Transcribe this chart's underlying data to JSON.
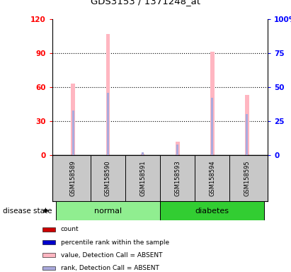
{
  "title": "GDS3153 / 1371248_at",
  "samples": [
    "GSM158589",
    "GSM158590",
    "GSM158591",
    "GSM158593",
    "GSM158594",
    "GSM158595"
  ],
  "groups": [
    "normal",
    "normal",
    "normal",
    "diabetes",
    "diabetes",
    "diabetes"
  ],
  "ylim_left": [
    0,
    120
  ],
  "ylim_right": [
    0,
    100
  ],
  "yticks_left": [
    0,
    30,
    60,
    90,
    120
  ],
  "yticks_right": [
    0,
    25,
    50,
    75,
    100
  ],
  "left_tick_labels": [
    "0",
    "30",
    "60",
    "90",
    "120"
  ],
  "right_tick_labels": [
    "0",
    "25",
    "50",
    "75",
    "100%"
  ],
  "bar_values": [
    63,
    107,
    1,
    12,
    91,
    53
  ],
  "rank_values": [
    33,
    46,
    2,
    8,
    42,
    30
  ],
  "bar_color_absent": "#FFB6C1",
  "rank_color_absent": "#AAAADD",
  "legend_items": [
    {
      "label": "count",
      "color": "#CC0000"
    },
    {
      "label": "percentile rank within the sample",
      "color": "#0000CC"
    },
    {
      "label": "value, Detection Call = ABSENT",
      "color": "#FFB6C1"
    },
    {
      "label": "rank, Detection Call = ABSENT",
      "color": "#AAAADD"
    }
  ],
  "disease_state_label": "disease state",
  "normal_color": "#90EE90",
  "diabetes_color": "#32CD32",
  "sample_box_color": "#C8C8C8",
  "grid_color": "#000000",
  "bar_width": 0.12,
  "rank_bar_width": 0.06
}
